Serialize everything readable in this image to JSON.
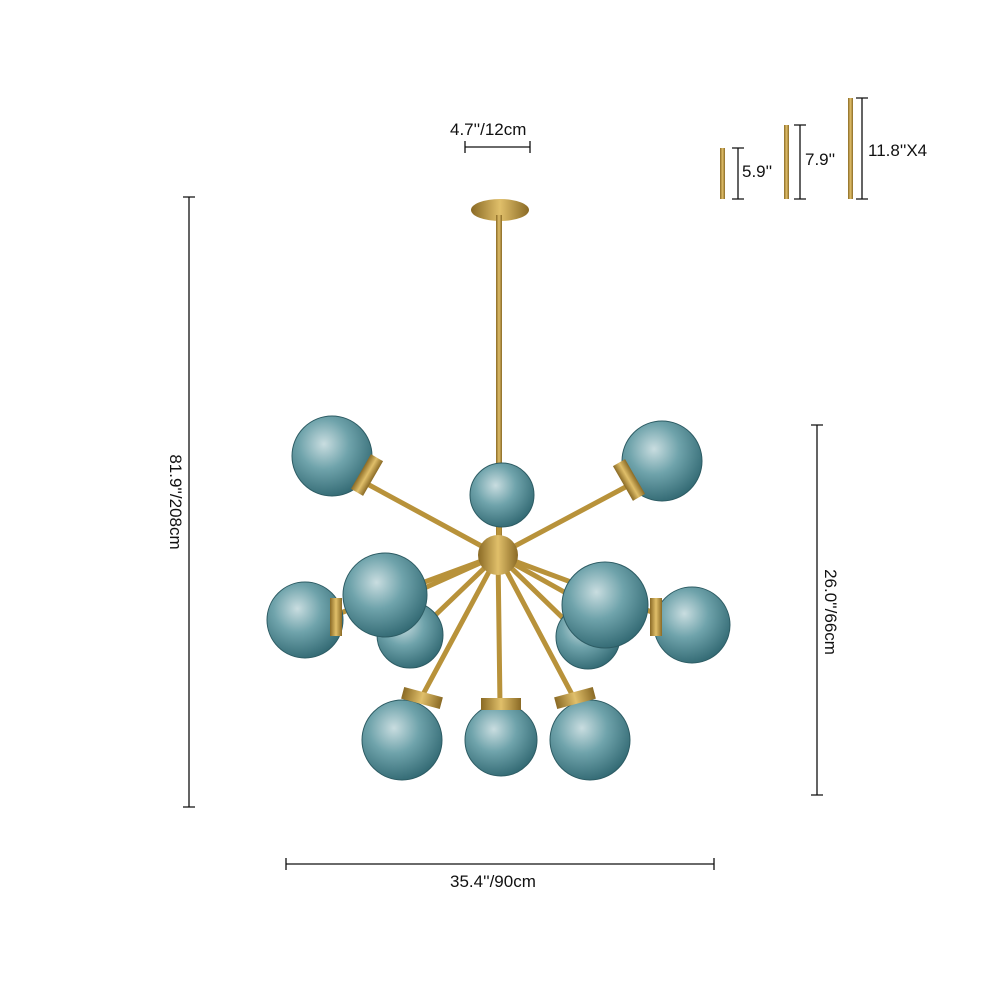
{
  "dimensions": {
    "canopy_width": "4.7''/12cm",
    "total_height": "81.9''/208cm",
    "fixture_height": "26.0''/66cm",
    "fixture_width": "35.4''/90cm"
  },
  "rods": [
    {
      "label": "5.9''"
    },
    {
      "label": "7.9''"
    },
    {
      "label": "11.8''X4"
    }
  ],
  "colors": {
    "brass": "#b8923a",
    "glass": "#4f8a93",
    "line": "#111111"
  }
}
